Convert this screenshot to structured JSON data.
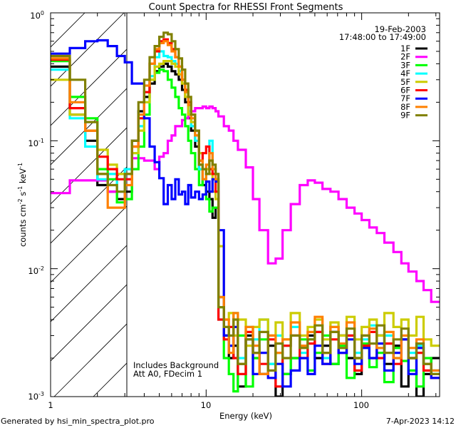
{
  "chart_data": {
    "type": "line",
    "title": "Count Spectra for RHESSI Front Segments",
    "xlabel": "Energy (keV)",
    "ylabel": {
      "base": "counts cm",
      "e1": "-2",
      "mid": " s",
      "e2": "-1",
      "mid2": " keV",
      "e3": "-1"
    },
    "xscale": "log",
    "yscale": "log",
    "xlim": [
      1,
      317
    ],
    "ylim": [
      0.001,
      1
    ],
    "xticks": [
      {
        "value": 1,
        "label": "1"
      },
      {
        "value": 10,
        "label": "10"
      },
      {
        "value": 100,
        "label": "100"
      }
    ],
    "yticks": [
      {
        "value": 1,
        "base": "10",
        "exp": "0"
      },
      {
        "value": 0.1,
        "base": "10",
        "exp": "-1"
      },
      {
        "value": 0.01,
        "base": "10",
        "exp": "-2"
      },
      {
        "value": 0.001,
        "base": "10",
        "exp": "-3"
      }
    ],
    "date": "19-Feb-2003",
    "time_range": "17:48:00 to 17:49:00",
    "annotations": [
      "Includes Background",
      "Att A0, FDecim 1"
    ],
    "attenuated_region_keV": [
      1,
      3.1
    ],
    "legend_position": "top-right",
    "energy_edges": [
      1.0,
      1.33,
      1.67,
      2.0,
      2.33,
      2.67,
      3.0,
      3.33,
      3.67,
      4.0,
      4.33,
      4.67,
      5.0,
      5.33,
      5.67,
      6.0,
      6.33,
      6.67,
      7.0,
      7.33,
      7.67,
      8.0,
      8.5,
      9,
      9.5,
      10,
      10.5,
      11,
      11.5,
      12,
      13,
      14,
      15,
      16,
      18,
      20,
      22,
      25,
      28,
      31,
      35,
      40,
      45,
      50,
      56,
      63,
      71,
      80,
      90,
      100,
      112,
      125,
      140,
      160,
      180,
      200,
      225,
      250,
      280,
      317
    ],
    "series": [
      {
        "name": "1F",
        "color": "#000000",
        "values": [
          0.38,
          0.16,
          0.1,
          0.045,
          0.04,
          0.035,
          0.04,
          0.1,
          0.17,
          0.22,
          0.28,
          0.35,
          0.38,
          0.4,
          0.38,
          0.35,
          0.33,
          0.3,
          0.25,
          0.2,
          0.15,
          0.12,
          0.09,
          0.06,
          0.045,
          0.04,
          0.035,
          0.025,
          0.03,
          0.006,
          0.003,
          0.002,
          0.0025,
          0.0012,
          0.003,
          0.002,
          0.0015,
          0.0025,
          0.001,
          0.0015,
          0.002,
          0.0025,
          0.003,
          0.002,
          0.0025,
          0.0018,
          0.003,
          0.002,
          0.0015,
          0.0025,
          0.002,
          0.003,
          0.0018,
          0.0025,
          0.0012,
          0.002,
          0.001,
          0.0015,
          0.002
        ]
      },
      {
        "name": "2F",
        "color": "#ff00ff",
        "values": [
          0.039,
          0.049,
          0.049,
          0.049,
          0.04,
          0.04,
          0.05,
          0.073,
          0.073,
          0.07,
          0.07,
          0.06,
          0.075,
          0.08,
          0.1,
          0.11,
          0.13,
          0.13,
          0.145,
          0.15,
          0.16,
          0.17,
          0.18,
          0.18,
          0.185,
          0.18,
          0.185,
          0.18,
          0.17,
          0.155,
          0.13,
          0.12,
          0.1,
          0.085,
          0.062,
          0.035,
          0.02,
          0.011,
          0.012,
          0.02,
          0.032,
          0.045,
          0.049,
          0.047,
          0.042,
          0.04,
          0.035,
          0.03,
          0.027,
          0.024,
          0.021,
          0.019,
          0.016,
          0.0135,
          0.011,
          0.0095,
          0.008,
          0.0068,
          0.0055
        ]
      },
      {
        "name": "3F",
        "color": "#00ff00",
        "values": [
          0.42,
          0.22,
          0.15,
          0.06,
          0.05,
          0.033,
          0.035,
          0.06,
          0.09,
          0.16,
          0.3,
          0.34,
          0.36,
          0.35,
          0.3,
          0.26,
          0.22,
          0.18,
          0.16,
          0.13,
          0.1,
          0.08,
          0.06,
          0.045,
          0.05,
          0.035,
          0.028,
          0.03,
          0.03,
          0.005,
          0.002,
          0.0015,
          0.0011,
          0.003,
          0.0012,
          0.002,
          0.0028,
          0.0018,
          0.0022,
          0.0015,
          0.002,
          0.0028,
          0.0016,
          0.0022,
          0.003,
          0.0018,
          0.0025,
          0.0014,
          0.002,
          0.0026,
          0.0017,
          0.0022,
          0.0013,
          0.0024,
          0.0019,
          0.0016,
          0.0012,
          0.002,
          0.0015
        ]
      },
      {
        "name": "4F",
        "color": "#00ffff",
        "values": [
          0.36,
          0.15,
          0.09,
          0.05,
          0.055,
          0.04,
          0.06,
          0.08,
          0.13,
          0.2,
          0.32,
          0.45,
          0.5,
          0.46,
          0.45,
          0.42,
          0.4,
          0.35,
          0.3,
          0.24,
          0.17,
          0.13,
          0.1,
          0.06,
          0.05,
          0.055,
          0.1,
          0.06,
          0.05,
          0.004,
          0.0035,
          0.0025,
          0.0045,
          0.002,
          0.0035,
          0.0028,
          0.004,
          0.0018,
          0.003,
          0.0025,
          0.0035,
          0.0022,
          0.0028,
          0.0032,
          0.002,
          0.0035,
          0.0026,
          0.003,
          0.0022,
          0.0028,
          0.0036,
          0.0024,
          0.003,
          0.002,
          0.0028,
          0.0022,
          0.0025,
          0.0018,
          0.0016
        ]
      },
      {
        "name": "5F",
        "color": "#cccc00",
        "values": [
          0.3,
          0.16,
          0.12,
          0.085,
          0.065,
          0.055,
          0.055,
          0.08,
          0.12,
          0.2,
          0.3,
          0.38,
          0.4,
          0.42,
          0.42,
          0.4,
          0.38,
          0.33,
          0.28,
          0.22,
          0.16,
          0.14,
          0.11,
          0.08,
          0.06,
          0.06,
          0.055,
          0.04,
          0.035,
          0.015,
          0.004,
          0.0045,
          0.003,
          0.004,
          0.0025,
          0.0035,
          0.004,
          0.003,
          0.0038,
          0.0028,
          0.0045,
          0.003,
          0.0035,
          0.004,
          0.0028,
          0.0038,
          0.003,
          0.0042,
          0.0028,
          0.0035,
          0.004,
          0.003,
          0.0045,
          0.0035,
          0.004,
          0.003,
          0.0042,
          0.0028,
          0.0025
        ]
      },
      {
        "name": "6F",
        "color": "#ff0000",
        "values": [
          0.43,
          0.18,
          0.12,
          0.075,
          0.06,
          0.05,
          0.05,
          0.09,
          0.15,
          0.24,
          0.4,
          0.5,
          0.6,
          0.62,
          0.58,
          0.52,
          0.45,
          0.38,
          0.3,
          0.25,
          0.2,
          0.16,
          0.12,
          0.07,
          0.08,
          0.09,
          0.06,
          0.055,
          0.04,
          0.004,
          0.0028,
          0.0035,
          0.002,
          0.0015,
          0.0032,
          0.0022,
          0.0018,
          0.0028,
          0.0012,
          0.0025,
          0.003,
          0.002,
          0.0026,
          0.0032,
          0.0018,
          0.0028,
          0.0022,
          0.003,
          0.0016,
          0.0025,
          0.0032,
          0.002,
          0.0026,
          0.0018,
          0.0028,
          0.002,
          0.0022,
          0.0016,
          0.0014
        ]
      },
      {
        "name": "7F",
        "color": "#0000ff",
        "values": [
          0.48,
          0.53,
          0.6,
          0.61,
          0.55,
          0.46,
          0.41,
          0.28,
          0.28,
          0.15,
          0.09,
          0.068,
          0.051,
          0.032,
          0.045,
          0.035,
          0.05,
          0.038,
          0.04,
          0.032,
          0.045,
          0.036,
          0.04,
          0.035,
          0.038,
          0.048,
          0.04,
          0.05,
          0.048,
          0.02,
          0.003,
          0.0025,
          0.0035,
          0.0018,
          0.0028,
          0.0015,
          0.0022,
          0.0014,
          0.0018,
          0.0012,
          0.0016,
          0.002,
          0.0015,
          0.0025,
          0.0018,
          0.0032,
          0.0022,
          0.0028,
          0.0018,
          0.0024,
          0.002,
          0.0026,
          0.0016,
          0.0022,
          0.0028,
          0.0015,
          0.0024,
          0.0018,
          0.0014
        ]
      },
      {
        "name": "8F",
        "color": "#ff8000",
        "values": [
          0.44,
          0.2,
          0.12,
          0.055,
          0.03,
          0.03,
          0.045,
          0.09,
          0.16,
          0.27,
          0.4,
          0.52,
          0.58,
          0.6,
          0.56,
          0.5,
          0.45,
          0.38,
          0.3,
          0.24,
          0.19,
          0.15,
          0.11,
          0.07,
          0.05,
          0.065,
          0.08,
          0.06,
          0.05,
          0.006,
          0.004,
          0.0022,
          0.0045,
          0.0018,
          0.0035,
          0.0025,
          0.0015,
          0.003,
          0.0022,
          0.0028,
          0.0038,
          0.0025,
          0.0032,
          0.0042,
          0.0022,
          0.0035,
          0.0026,
          0.0038,
          0.002,
          0.003,
          0.0034,
          0.0024,
          0.0032,
          0.002,
          0.003,
          0.0024,
          0.0028,
          0.0018,
          0.0016
        ]
      },
      {
        "name": "9F",
        "color": "#808000",
        "values": [
          0.46,
          0.3,
          0.14,
          0.055,
          0.045,
          0.04,
          0.055,
          0.1,
          0.2,
          0.3,
          0.45,
          0.55,
          0.65,
          0.7,
          0.68,
          0.6,
          0.52,
          0.44,
          0.36,
          0.28,
          0.22,
          0.16,
          0.12,
          0.065,
          0.06,
          0.055,
          0.07,
          0.065,
          0.055,
          0.005,
          0.0035,
          0.003,
          0.004,
          0.0018,
          0.0028,
          0.0022,
          0.0032,
          0.0016,
          0.0026,
          0.002,
          0.003,
          0.0024,
          0.0028,
          0.0036,
          0.0022,
          0.0032,
          0.0024,
          0.0034,
          0.002,
          0.003,
          0.0026,
          0.0036,
          0.0022,
          0.0028,
          0.0034,
          0.002,
          0.0026,
          0.0018,
          0.0015
        ]
      }
    ]
  },
  "footer": {
    "generated_by": "Generated by hsi_min_spectra_plot.pro",
    "timestamp": "7-Apr-2023 14:12"
  }
}
